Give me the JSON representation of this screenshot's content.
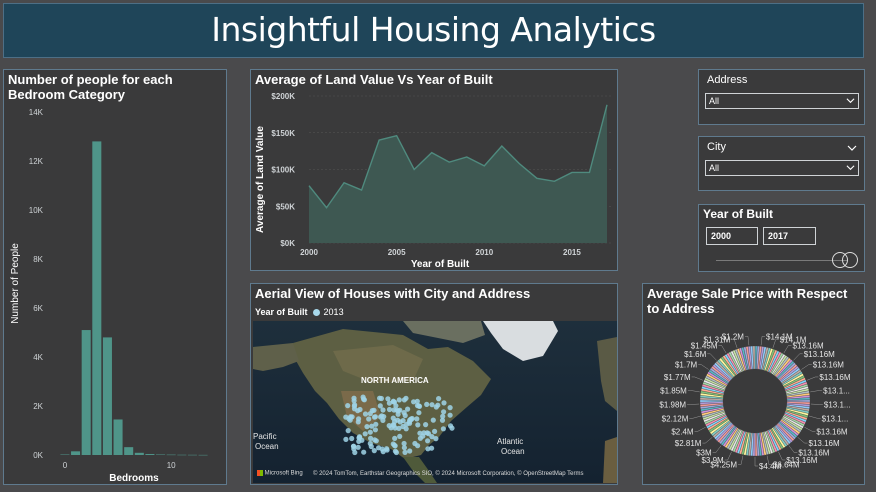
{
  "app_title": "Insightful Housing Analytics",
  "bedroom_chart": {
    "title": "Number of people for each Bedroom Category",
    "chart_data": {
      "type": "bar",
      "title": "Number of people for each Bedroom Category",
      "xlabel": "Bedrooms",
      "ylabel": "Number of People",
      "x": [
        0,
        1,
        2,
        3,
        4,
        5,
        6,
        7,
        8,
        9,
        10,
        11,
        12,
        13
      ],
      "values": [
        20,
        150,
        5100,
        12800,
        4800,
        1450,
        320,
        90,
        40,
        20,
        15,
        10,
        8,
        5
      ],
      "ylim": [
        0,
        14000
      ],
      "xticks": [
        "0",
        "10"
      ],
      "yticks": [
        "0K",
        "2K",
        "4K",
        "6K",
        "8K",
        "10K",
        "12K",
        "14K"
      ],
      "color": "#4f9589"
    }
  },
  "land_value_chart": {
    "title": "Average of Land Value Vs Year of Built",
    "chart_data": {
      "type": "area",
      "title": "Average of Land Value Vs Year of Built",
      "xlabel": "Year of Built",
      "ylabel": "Average of Land Value",
      "x": [
        2000,
        2001,
        2002,
        2003,
        2004,
        2005,
        2006,
        2007,
        2008,
        2009,
        2010,
        2011,
        2012,
        2013,
        2014,
        2015,
        2016,
        2017
      ],
      "values": [
        78000,
        48000,
        82000,
        72000,
        140000,
        146000,
        100000,
        123000,
        110000,
        117000,
        105000,
        132000,
        108000,
        88000,
        84000,
        96000,
        96000,
        188000
      ],
      "xlim": [
        2000,
        2017
      ],
      "ylim": [
        0,
        200000
      ],
      "xticks": [
        "2000",
        "2005",
        "2010",
        "2015"
      ],
      "yticks": [
        "$0K",
        "$50K",
        "$100K",
        "$150K",
        "$200K"
      ],
      "color": "#4f8a7e"
    }
  },
  "slicers": {
    "address": {
      "label": "Address",
      "value": "All"
    },
    "city": {
      "label": "City",
      "value": "All"
    },
    "year_built": {
      "label": "Year of Built",
      "from": "2000",
      "to": "2017"
    }
  },
  "map": {
    "title": "Aerial View of Houses with City and Address",
    "legend_label": "Year of Built",
    "legend_value": "2013",
    "place_labels": [
      "NORTH AMERICA",
      "Pacific",
      "Ocean",
      "Atlantic",
      "Ocean"
    ],
    "provider": "Microsoft Bing",
    "attribution": "© 2024 TomTom, Earthstar Geographics SIO, © 2024 Microsoft Corporation, © OpenStreetMap Terms"
  },
  "sale_price_chart": {
    "title": "Average Sale Price with Respect to Address",
    "chart_data": {
      "type": "pie",
      "title": "Average Sale Price with Respect to Address",
      "labels": [
        "$14.1M",
        "$14.1M",
        "$13.16M",
        "$13.16M",
        "$13.16M",
        "$13.16M",
        "$13.1...",
        "$13.1...",
        "$13.1...",
        "$13.16M",
        "$13.16M",
        "$13.16M",
        "$13.16M",
        "$6.64M",
        "$4.4M",
        "$4.25M",
        "$3.9M",
        "$3M",
        "$2.81M",
        "$2.4M",
        "$2.12M",
        "$1.98M",
        "$1.85M",
        "$1.77M",
        "$1.7M",
        "$1.6M",
        "$1.45M",
        "$1.31M",
        "$1.2M"
      ],
      "values": [
        14.1,
        14.1,
        13.16,
        13.16,
        13.16,
        13.16,
        13.1,
        13.1,
        13.1,
        13.16,
        13.16,
        13.16,
        13.16,
        6.64,
        4.4,
        4.25,
        3.9,
        3,
        2.81,
        2.4,
        2.12,
        1.98,
        1.85,
        1.77,
        1.7,
        1.6,
        1.45,
        1.31,
        1.2
      ],
      "palette": [
        "#5ab4c4",
        "#e6e6e6",
        "#7fbf7a",
        "#b39ddb",
        "#ffca7a",
        "#f48fb1",
        "#80cbc4",
        "#9fa8da",
        "#c5e1a5",
        "#ffab91",
        "#90caf9",
        "#ce93d8",
        "#a5d6a7",
        "#fff59d",
        "#ef9a9a",
        "#b0bec5",
        "#81d4fa",
        "#bcaaa4"
      ]
    }
  }
}
